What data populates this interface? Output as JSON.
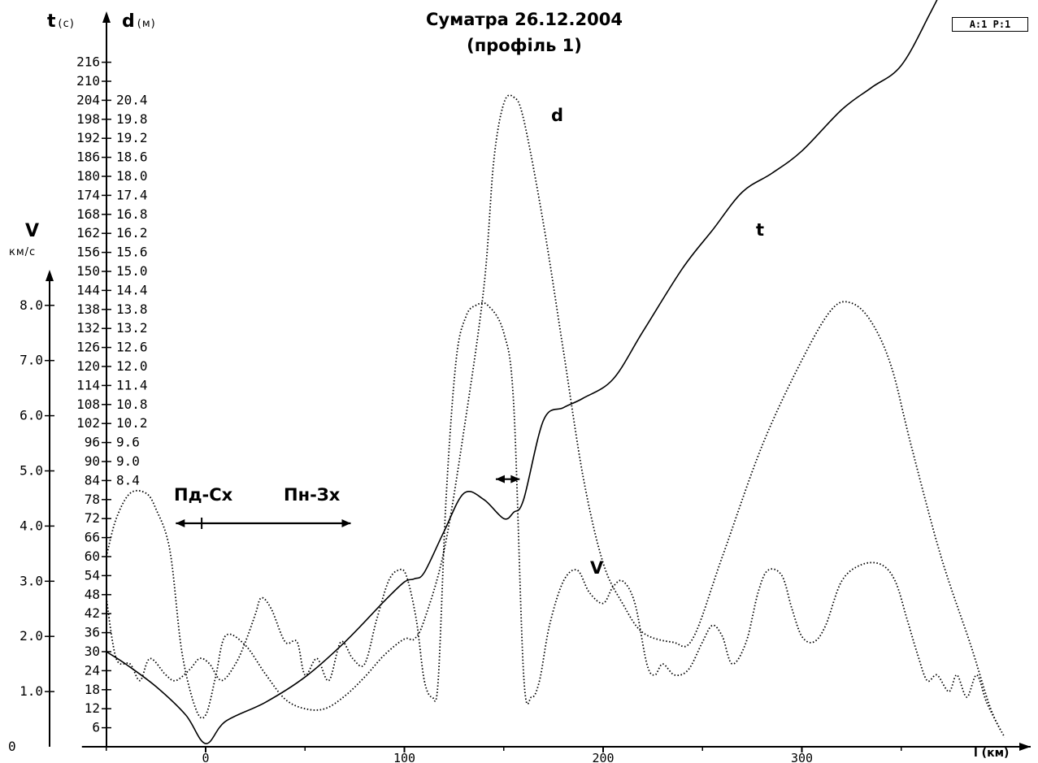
{
  "chart_data": {
    "type": "line",
    "title": "Суматра 26.12.2004",
    "subtitle": "(профіль 1)",
    "badge": "A:1 P:1",
    "xlabel": "l (км)",
    "xlim": [
      -50,
      410
    ],
    "x_ticks": [
      0,
      100,
      200,
      300
    ],
    "axes": {
      "t": {
        "label": "t",
        "unit": "(с)",
        "range": [
          0,
          222
        ],
        "ticks": [
          6,
          12,
          18,
          24,
          30,
          36,
          42,
          48,
          54,
          60,
          66,
          72,
          78,
          84,
          90,
          96,
          102,
          108,
          114,
          120,
          126,
          132,
          138,
          144,
          150,
          156,
          162,
          168,
          174,
          180,
          186,
          192,
          198,
          204,
          210,
          216
        ]
      },
      "d": {
        "label": "d",
        "unit": "(м)",
        "range": [
          0,
          22.2
        ],
        "ticks": [
          "8.4",
          "9.0",
          "9.6",
          "10.2",
          "10.8",
          "11.4",
          "12.0",
          "12.6",
          "13.2",
          "13.8",
          "14.4",
          "15.0",
          "15.6",
          "16.2",
          "16.8",
          "17.4",
          "18.0",
          "18.6",
          "19.2",
          "19.8",
          "20.4"
        ]
      },
      "v": {
        "label": "V",
        "unit": "км/с",
        "range": [
          0,
          8.7
        ],
        "ticks": [
          "0",
          "1.0",
          "2.0",
          "3.0",
          "4.0",
          "5.0",
          "6.0",
          "7.0",
          "8.0"
        ]
      }
    },
    "series": [
      {
        "name": "t",
        "axis": "t",
        "style": "solid",
        "points": [
          [
            -50,
            30
          ],
          [
            -40,
            26
          ],
          [
            -25,
            19
          ],
          [
            -10,
            10
          ],
          [
            0,
            1
          ],
          [
            10,
            8
          ],
          [
            30,
            14
          ],
          [
            50,
            22
          ],
          [
            70,
            33
          ],
          [
            90,
            46
          ],
          [
            100,
            52
          ],
          [
            105,
            53
          ],
          [
            110,
            55
          ],
          [
            120,
            68
          ],
          [
            130,
            80
          ],
          [
            140,
            78
          ],
          [
            150,
            72
          ],
          [
            155,
            74
          ],
          [
            160,
            78
          ],
          [
            170,
            103
          ],
          [
            180,
            107
          ],
          [
            190,
            110
          ],
          [
            205,
            116
          ],
          [
            220,
            131
          ],
          [
            240,
            151
          ],
          [
            255,
            163
          ],
          [
            270,
            175
          ],
          [
            285,
            181
          ],
          [
            300,
            188
          ],
          [
            320,
            201
          ],
          [
            335,
            208
          ],
          [
            350,
            215
          ],
          [
            365,
            232
          ],
          [
            380,
            251
          ],
          [
            390,
            265
          ],
          [
            400,
            280
          ]
        ]
      },
      {
        "name": "d",
        "axis": "d",
        "style": "dotted",
        "points": [
          [
            -50,
            6.0
          ],
          [
            -45,
            7.2
          ],
          [
            -38,
            8.0
          ],
          [
            -30,
            8.0
          ],
          [
            -25,
            7.5
          ],
          [
            -18,
            6.2
          ],
          [
            -12,
            3.0
          ],
          [
            -5,
            1.2
          ],
          [
            0,
            1.0
          ],
          [
            5,
            2.2
          ],
          [
            10,
            3.5
          ],
          [
            20,
            3.2
          ],
          [
            30,
            2.3
          ],
          [
            40,
            1.5
          ],
          [
            50,
            1.2
          ],
          [
            60,
            1.2
          ],
          [
            70,
            1.6
          ],
          [
            80,
            2.2
          ],
          [
            90,
            2.9
          ],
          [
            100,
            3.4
          ],
          [
            105,
            3.4
          ],
          [
            110,
            4.0
          ],
          [
            120,
            6.2
          ],
          [
            130,
            10.0
          ],
          [
            140,
            14.5
          ],
          [
            145,
            18.5
          ],
          [
            150,
            20.3
          ],
          [
            155,
            20.5
          ],
          [
            160,
            19.8
          ],
          [
            170,
            16.5
          ],
          [
            180,
            12.5
          ],
          [
            190,
            8.5
          ],
          [
            200,
            5.8
          ],
          [
            210,
            4.5
          ],
          [
            220,
            3.6
          ],
          [
            235,
            3.3
          ],
          [
            245,
            3.4
          ],
          [
            260,
            6.0
          ],
          [
            280,
            9.5
          ],
          [
            300,
            12.2
          ],
          [
            315,
            13.8
          ],
          [
            325,
            14.0
          ],
          [
            335,
            13.4
          ],
          [
            345,
            12.0
          ],
          [
            355,
            9.5
          ],
          [
            370,
            6.0
          ],
          [
            385,
            3.2
          ],
          [
            395,
            1.2
          ],
          [
            402,
            0.3
          ]
        ]
      },
      {
        "name": "V",
        "axis": "v",
        "style": "dotted",
        "points": [
          [
            -50,
            2.7
          ],
          [
            -45,
            1.6
          ],
          [
            -38,
            1.5
          ],
          [
            -33,
            1.2
          ],
          [
            -28,
            1.6
          ],
          [
            -20,
            1.3
          ],
          [
            -15,
            1.2
          ],
          [
            -8,
            1.4
          ],
          [
            -3,
            1.6
          ],
          [
            2,
            1.5
          ],
          [
            8,
            1.2
          ],
          [
            15,
            1.5
          ],
          [
            20,
            1.9
          ],
          [
            25,
            2.4
          ],
          [
            28,
            2.7
          ],
          [
            33,
            2.5
          ],
          [
            40,
            1.9
          ],
          [
            46,
            1.9
          ],
          [
            50,
            1.3
          ],
          [
            56,
            1.6
          ],
          [
            62,
            1.2
          ],
          [
            68,
            1.9
          ],
          [
            74,
            1.6
          ],
          [
            80,
            1.5
          ],
          [
            86,
            2.3
          ],
          [
            92,
            3.0
          ],
          [
            97,
            3.2
          ],
          [
            101,
            3.1
          ],
          [
            106,
            2.3
          ],
          [
            110,
            1.2
          ],
          [
            114,
            0.9
          ],
          [
            117,
            1.2
          ],
          [
            121,
            4.5
          ],
          [
            126,
            7.0
          ],
          [
            131,
            7.8
          ],
          [
            136,
            8.0
          ],
          [
            142,
            8.0
          ],
          [
            150,
            7.5
          ],
          [
            155,
            6.2
          ],
          [
            160,
            1.3
          ],
          [
            164,
            0.9
          ],
          [
            168,
            1.2
          ],
          [
            173,
            2.2
          ],
          [
            180,
            3.0
          ],
          [
            187,
            3.2
          ],
          [
            193,
            2.8
          ],
          [
            200,
            2.6
          ],
          [
            205,
            2.9
          ],
          [
            210,
            3.0
          ],
          [
            216,
            2.6
          ],
          [
            222,
            1.5
          ],
          [
            226,
            1.3
          ],
          [
            230,
            1.5
          ],
          [
            236,
            1.3
          ],
          [
            243,
            1.4
          ],
          [
            250,
            1.9
          ],
          [
            255,
            2.2
          ],
          [
            260,
            2.0
          ],
          [
            265,
            1.5
          ],
          [
            272,
            1.9
          ],
          [
            278,
            2.8
          ],
          [
            283,
            3.2
          ],
          [
            290,
            3.1
          ],
          [
            295,
            2.5
          ],
          [
            300,
            2.0
          ],
          [
            306,
            1.9
          ],
          [
            312,
            2.2
          ],
          [
            320,
            3.0
          ],
          [
            330,
            3.3
          ],
          [
            340,
            3.3
          ],
          [
            347,
            3.0
          ],
          [
            353,
            2.3
          ],
          [
            358,
            1.7
          ],
          [
            363,
            1.2
          ],
          [
            368,
            1.3
          ],
          [
            374,
            1.0
          ],
          [
            378,
            1.3
          ],
          [
            383,
            0.9
          ],
          [
            388,
            1.3
          ],
          [
            393,
            0.8
          ],
          [
            400,
            0.3
          ]
        ]
      }
    ],
    "annotations": [
      {
        "text": "Пд-Сх",
        "x": -15,
        "y_v": 4.6
      },
      {
        "text": "Пн-Зх",
        "x": 50,
        "y_v": 4.6
      },
      {
        "text": "d",
        "x": 172,
        "axis": "d",
        "y": 19.4
      },
      {
        "text": "t",
        "x": 282,
        "axis": "t",
        "y": 172
      },
      {
        "text": "V",
        "x": 196,
        "axis": "v",
        "y": 3.2
      }
    ],
    "arrows": [
      {
        "from": -15,
        "to": 73,
        "y_v": 4.05,
        "double": true,
        "marker_at": -2
      },
      {
        "from": 146,
        "to": 158,
        "y_v": 4.85,
        "double": true
      }
    ]
  }
}
